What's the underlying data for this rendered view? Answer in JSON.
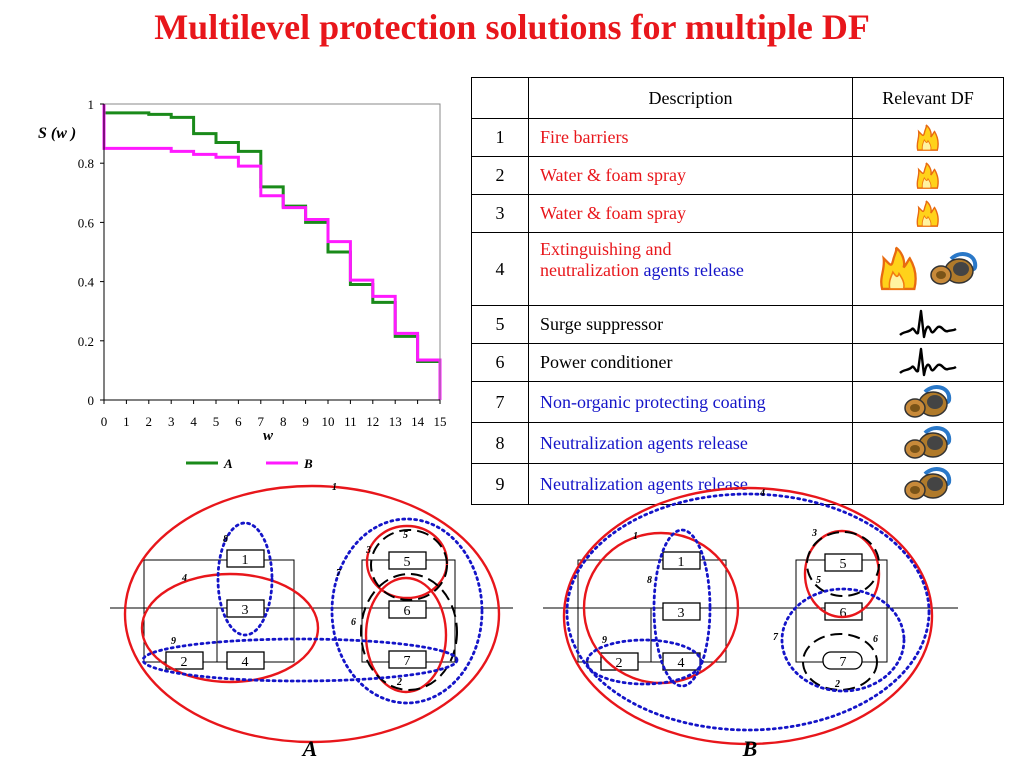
{
  "title": "Multilevel protection solutions for multiple DF",
  "chart_data": {
    "type": "line",
    "step": true,
    "ylabel": "S (w )",
    "xlabel": "w",
    "xlim": [
      0,
      15
    ],
    "ylim": [
      0,
      1
    ],
    "x_ticks": [
      "0",
      "1",
      "2",
      "3",
      "4",
      "5",
      "6",
      "7",
      "8",
      "9",
      "10",
      "11",
      "12",
      "13",
      "14",
      "15"
    ],
    "y_ticks": [
      "0",
      "0.2",
      "0.4",
      "0.6",
      "0.8",
      "1"
    ],
    "legend_position": "bottom",
    "series": [
      {
        "name": "A",
        "color": "#1a8a1a",
        "x": [
          0,
          0,
          1,
          2,
          3,
          4,
          5,
          6,
          7,
          8,
          9,
          10,
          11,
          12,
          13,
          14,
          15,
          15
        ],
        "y": [
          1,
          0.97,
          0.97,
          0.965,
          0.955,
          0.9,
          0.87,
          0.84,
          0.72,
          0.655,
          0.6,
          0.5,
          0.39,
          0.33,
          0.215,
          0.13,
          0.13,
          0
        ]
      },
      {
        "name": "B",
        "color": "#ff1aff",
        "x": [
          0,
          0,
          1,
          2,
          3,
          4,
          5,
          6,
          7,
          8,
          9,
          10,
          11,
          12,
          13,
          14,
          15,
          15
        ],
        "y": [
          1,
          0.85,
          0.85,
          0.85,
          0.84,
          0.83,
          0.82,
          0.79,
          0.69,
          0.65,
          0.61,
          0.535,
          0.405,
          0.35,
          0.225,
          0.135,
          0.135,
          0
        ]
      }
    ]
  },
  "table": {
    "headers": {
      "num": "",
      "description": "Description",
      "df": "Relevant DF"
    },
    "rows": [
      {
        "num": "1",
        "parts": [
          {
            "text": "Fire barriers",
            "color": "red"
          }
        ],
        "icons": [
          "fire-icon"
        ]
      },
      {
        "num": "2",
        "parts": [
          {
            "text": "Water & foam spray",
            "color": "red"
          }
        ],
        "icons": [
          "fire-icon"
        ]
      },
      {
        "num": "3",
        "parts": [
          {
            "text": "Water & foam spray",
            "color": "red"
          }
        ],
        "icons": [
          "fire-icon"
        ]
      },
      {
        "num": "4",
        "parts": [
          {
            "text": "Extinguishing and",
            "color": "red"
          },
          {
            "text": "neutralization",
            "color": "red"
          },
          {
            "text": " agents release",
            "color": "blue"
          }
        ],
        "icons": [
          "large-fire-icon",
          "gas-mask-icon"
        ]
      },
      {
        "num": "5",
        "parts": [
          {
            "text": "Surge suppressor",
            "color": "black"
          }
        ],
        "icons": [
          "surge-wave-icon"
        ]
      },
      {
        "num": "6",
        "parts": [
          {
            "text": "Power conditioner",
            "color": "black"
          }
        ],
        "icons": [
          "surge-wave-icon"
        ]
      },
      {
        "num": "7",
        "parts": [
          {
            "text": "Non-organic protecting coating",
            "color": "blue"
          }
        ],
        "icons": [
          "gas-mask-icon"
        ]
      },
      {
        "num": "8",
        "parts": [
          {
            "text": "Neutralization agents release",
            "color": "blue"
          }
        ],
        "icons": [
          "gas-mask-icon"
        ]
      },
      {
        "num": "9",
        "parts": [
          {
            "text": "Neutralization agents release",
            "color": "blue"
          }
        ],
        "icons": [
          "gas-mask-icon"
        ]
      }
    ]
  },
  "diagram_a": {
    "label": "A",
    "elements": [
      "1",
      "3",
      "2",
      "4",
      "5",
      "6",
      "7"
    ],
    "group_labels": [
      "1",
      "2",
      "3",
      "4",
      "5",
      "6",
      "7",
      "8",
      "9"
    ]
  },
  "diagram_b": {
    "label": "B",
    "elements": [
      "1",
      "3",
      "2",
      "4",
      "5",
      "6",
      "7"
    ],
    "group_labels": [
      "1",
      "2",
      "3",
      "4",
      "5",
      "6",
      "7",
      "8",
      "9"
    ]
  },
  "colors": {
    "title": "#e8161b",
    "red": "#e8161b",
    "blue": "#1414c8",
    "green": "#1a8a1a",
    "magenta": "#ff1aff"
  }
}
